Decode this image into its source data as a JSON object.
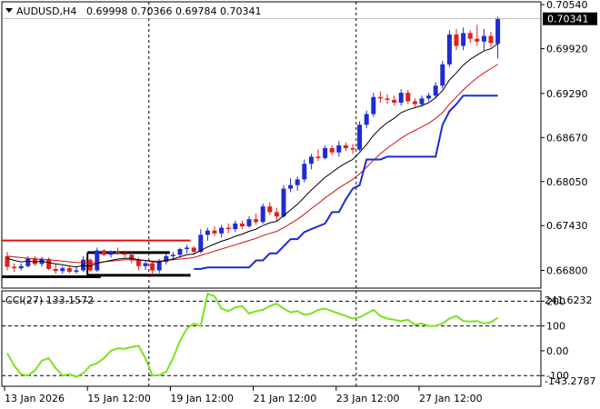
{
  "header": {
    "symbol": "AUDUSD,H4",
    "ohlc": "0.69998 0.70366 0.69784 0.70341"
  },
  "cci_header": {
    "label": "CCI(27) 133.1572",
    "max_label": "241.6232",
    "min_label": "-143.2787"
  },
  "colors": {
    "bull": "#1f2bd6",
    "bear": "#e02020",
    "ma_fast": "#000000",
    "ma_slow": "#d01010",
    "stop_line": "#1a2bd6",
    "resistance": "#e01010",
    "cci": "#7ce020",
    "last_price_box": "#000000"
  },
  "chart_data": [
    {
      "type": "candlestick",
      "title": "AUDUSD,H4",
      "x_ticks": [
        "13 Jan 2026",
        "15 Jan 12:00",
        "19 Jan 12:00",
        "21 Jan 12:00",
        "23 Jan 12:00",
        "27 Jan 12:00"
      ],
      "y_ticks": [
        "0.70540",
        "0.69920",
        "0.69290",
        "0.68670",
        "0.68050",
        "0.67430",
        "0.66800"
      ],
      "ylim": [
        0.6655,
        0.7058
      ],
      "last_price": "0.70341",
      "candles": [
        [
          0.67,
          0.6706,
          0.668,
          0.6685
        ],
        [
          0.6685,
          0.669,
          0.6678,
          0.6683
        ],
        [
          0.6683,
          0.669,
          0.668,
          0.6686
        ],
        [
          0.6686,
          0.67,
          0.6684,
          0.6697
        ],
        [
          0.6697,
          0.67,
          0.6686,
          0.6689
        ],
        [
          0.6689,
          0.6699,
          0.6685,
          0.6696
        ],
        [
          0.6696,
          0.6698,
          0.668,
          0.6682
        ],
        [
          0.6682,
          0.669,
          0.6675,
          0.6679
        ],
        [
          0.6679,
          0.6686,
          0.6675,
          0.6683
        ],
        [
          0.6683,
          0.6686,
          0.6676,
          0.6678
        ],
        [
          0.6678,
          0.6686,
          0.6675,
          0.668
        ],
        [
          0.668,
          0.67,
          0.6678,
          0.6695
        ],
        [
          0.6695,
          0.6697,
          0.6678,
          0.668
        ],
        [
          0.668,
          0.6712,
          0.6678,
          0.6708
        ],
        [
          0.6708,
          0.671,
          0.67,
          0.6702
        ],
        [
          0.6702,
          0.6708,
          0.6698,
          0.6706
        ],
        [
          0.6706,
          0.6712,
          0.6702,
          0.6704
        ],
        [
          0.6704,
          0.6708,
          0.6698,
          0.6702
        ],
        [
          0.6702,
          0.6706,
          0.669,
          0.6694
        ],
        [
          0.6694,
          0.6698,
          0.668,
          0.6686
        ],
        [
          0.6686,
          0.6694,
          0.668,
          0.669
        ],
        [
          0.669,
          0.6692,
          0.6674,
          0.668
        ],
        [
          0.668,
          0.6696,
          0.6676,
          0.6692
        ],
        [
          0.6692,
          0.6704,
          0.6688,
          0.67
        ],
        [
          0.67,
          0.6706,
          0.6694,
          0.6702
        ],
        [
          0.6702,
          0.6712,
          0.6698,
          0.671
        ],
        [
          0.671,
          0.6716,
          0.6704,
          0.6712
        ],
        [
          0.6712,
          0.6714,
          0.6702,
          0.6706
        ],
        [
          0.6706,
          0.6738,
          0.6704,
          0.673
        ],
        [
          0.673,
          0.674,
          0.6722,
          0.6736
        ],
        [
          0.6736,
          0.6742,
          0.6728,
          0.6732
        ],
        [
          0.6732,
          0.6744,
          0.6726,
          0.674
        ],
        [
          0.674,
          0.6746,
          0.6732,
          0.6738
        ],
        [
          0.6738,
          0.675,
          0.6734,
          0.6746
        ],
        [
          0.6746,
          0.675,
          0.6738,
          0.6742
        ],
        [
          0.6742,
          0.6756,
          0.674,
          0.6752
        ],
        [
          0.6752,
          0.676,
          0.6744,
          0.6748
        ],
        [
          0.6748,
          0.6774,
          0.6746,
          0.677
        ],
        [
          0.677,
          0.6776,
          0.6758,
          0.6762
        ],
        [
          0.6762,
          0.6768,
          0.675,
          0.6756
        ],
        [
          0.6756,
          0.68,
          0.6754,
          0.6795
        ],
        [
          0.6795,
          0.681,
          0.679,
          0.68
        ],
        [
          0.68,
          0.6812,
          0.6792,
          0.6808
        ],
        [
          0.6808,
          0.6836,
          0.6804,
          0.683
        ],
        [
          0.683,
          0.6844,
          0.6822,
          0.684
        ],
        [
          0.684,
          0.685,
          0.6834,
          0.6838
        ],
        [
          0.6838,
          0.6856,
          0.6836,
          0.6852
        ],
        [
          0.6852,
          0.6856,
          0.6842,
          0.6846
        ],
        [
          0.6846,
          0.6862,
          0.684,
          0.6856
        ],
        [
          0.6856,
          0.686,
          0.6848,
          0.6852
        ],
        [
          0.6852,
          0.6858,
          0.6844,
          0.685
        ],
        [
          0.685,
          0.689,
          0.6848,
          0.6885
        ],
        [
          0.6885,
          0.6905,
          0.688,
          0.69
        ],
        [
          0.69,
          0.693,
          0.6896,
          0.6924
        ],
        [
          0.6924,
          0.6932,
          0.6916,
          0.6922
        ],
        [
          0.6922,
          0.6928,
          0.6914,
          0.692
        ],
        [
          0.692,
          0.6926,
          0.6912,
          0.6916
        ],
        [
          0.6916,
          0.6935,
          0.6912,
          0.693
        ],
        [
          0.693,
          0.6934,
          0.6914,
          0.6918
        ],
        [
          0.6918,
          0.6922,
          0.691,
          0.6914
        ],
        [
          0.6914,
          0.6926,
          0.691,
          0.6922
        ],
        [
          0.6922,
          0.693,
          0.6918,
          0.6926
        ],
        [
          0.6926,
          0.6945,
          0.6922,
          0.694
        ],
        [
          0.694,
          0.6975,
          0.6936,
          0.697
        ],
        [
          0.697,
          0.7018,
          0.6966,
          0.7012
        ],
        [
          0.7012,
          0.702,
          0.699,
          0.6996
        ],
        [
          0.6996,
          0.7022,
          0.699,
          0.7014
        ],
        [
          0.7014,
          0.7018,
          0.7,
          0.7006
        ],
        [
          0.7006,
          0.7026,
          0.6996,
          0.7002
        ],
        [
          0.7002,
          0.702,
          0.699,
          0.701
        ],
        [
          0.701,
          0.7016,
          0.6994,
          0.7
        ],
        [
          0.6999,
          0.7037,
          0.6978,
          0.7034
        ]
      ],
      "ma_fast": [
        0.6697,
        0.6694,
        0.6692,
        0.6693,
        0.6692,
        0.6693,
        0.6691,
        0.6689,
        0.6688,
        0.6686,
        0.6685,
        0.6687,
        0.6686,
        0.669,
        0.6692,
        0.6694,
        0.6696,
        0.6697,
        0.6697,
        0.6695,
        0.6694,
        0.6692,
        0.6692,
        0.6694,
        0.6696,
        0.6699,
        0.6702,
        0.6703,
        0.6708,
        0.6713,
        0.6717,
        0.6721,
        0.6724,
        0.6728,
        0.6731,
        0.6735,
        0.6738,
        0.6743,
        0.6747,
        0.6749,
        0.6757,
        0.6765,
        0.6773,
        0.6783,
        0.6793,
        0.6802,
        0.6811,
        0.6818,
        0.6825,
        0.6831,
        0.6836,
        0.6846,
        0.6857,
        0.687,
        0.688,
        0.6888,
        0.6894,
        0.6902,
        0.6906,
        0.6909,
        0.6912,
        0.6916,
        0.6923,
        0.6933,
        0.6948,
        0.6958,
        0.6969,
        0.6977,
        0.6983,
        0.6989,
        0.6992,
        0.6999
      ],
      "ma_slow": [
        0.67,
        0.6699,
        0.6698,
        0.6697,
        0.6696,
        0.6696,
        0.6695,
        0.6694,
        0.6693,
        0.6692,
        0.6691,
        0.6691,
        0.669,
        0.6691,
        0.6692,
        0.6693,
        0.6694,
        0.6695,
        0.6695,
        0.6694,
        0.6694,
        0.6693,
        0.6693,
        0.6694,
        0.6695,
        0.6696,
        0.6697,
        0.6698,
        0.6701,
        0.6704,
        0.6707,
        0.671,
        0.6713,
        0.6716,
        0.6719,
        0.6722,
        0.6725,
        0.6729,
        0.6732,
        0.6735,
        0.674,
        0.6746,
        0.6752,
        0.6759,
        0.6767,
        0.6774,
        0.6782,
        0.6789,
        0.6796,
        0.6802,
        0.6808,
        0.6816,
        0.6825,
        0.6835,
        0.6844,
        0.6852,
        0.6859,
        0.6866,
        0.6872,
        0.6877,
        0.6882,
        0.6887,
        0.6894,
        0.6902,
        0.6914,
        0.6924,
        0.6934,
        0.6943,
        0.6951,
        0.6958,
        0.6964,
        0.697
      ],
      "stop_line": {
        "start_index": 27,
        "values": [
          0.6682,
          0.6682,
          0.6684,
          0.6684,
          0.6684,
          0.6684,
          0.6684,
          0.6684,
          0.6684,
          0.6694,
          0.6694,
          0.6704,
          0.6704,
          0.6714,
          0.6724,
          0.6724,
          0.6734,
          0.6738,
          0.6742,
          0.6746,
          0.6762,
          0.6762,
          0.678,
          0.6795,
          0.68,
          0.6836,
          0.6836,
          0.6836,
          0.684,
          0.684,
          0.684,
          0.684,
          0.684,
          0.684,
          0.684,
          0.684,
          0.6885,
          0.6904,
          0.6914,
          0.6926,
          0.6926,
          0.6926,
          0.6926,
          0.6926,
          0.6926
        ]
      },
      "resistance_line": {
        "value": 0.6722,
        "from_index": 0,
        "to_index": 26
      },
      "range_box": [
        {
          "value": 0.6705,
          "from_index": 12,
          "to_index": 23
        },
        {
          "value": 0.6673,
          "from_index": 12,
          "to_index": 26
        },
        {
          "value": 0.6671,
          "from_index": 0,
          "to_index": 13
        }
      ],
      "vertical_markers": [
        20,
        50
      ]
    },
    {
      "type": "line",
      "title": "CCI(27) 133.1572",
      "y_ticks": [
        "200",
        "100",
        "0.00",
        "-100"
      ],
      "ylim": [
        -143.2787,
        241.6232
      ],
      "levels": [
        200,
        100,
        -100
      ],
      "values": [
        -10,
        -60,
        -95,
        -100,
        -80,
        -40,
        -30,
        -70,
        -100,
        -95,
        -105,
        -90,
        -60,
        -50,
        -30,
        0,
        10,
        8,
        15,
        20,
        -30,
        -100,
        -98,
        -85,
        -30,
        40,
        90,
        110,
        100,
        230,
        220,
        170,
        160,
        175,
        180,
        150,
        160,
        165,
        180,
        190,
        170,
        155,
        160,
        145,
        150,
        165,
        170,
        160,
        150,
        140,
        130,
        135,
        150,
        165,
        140,
        130,
        125,
        120,
        125,
        105,
        110,
        100,
        100,
        110,
        130,
        140,
        120,
        118,
        120,
        110,
        115,
        133
      ]
    }
  ]
}
